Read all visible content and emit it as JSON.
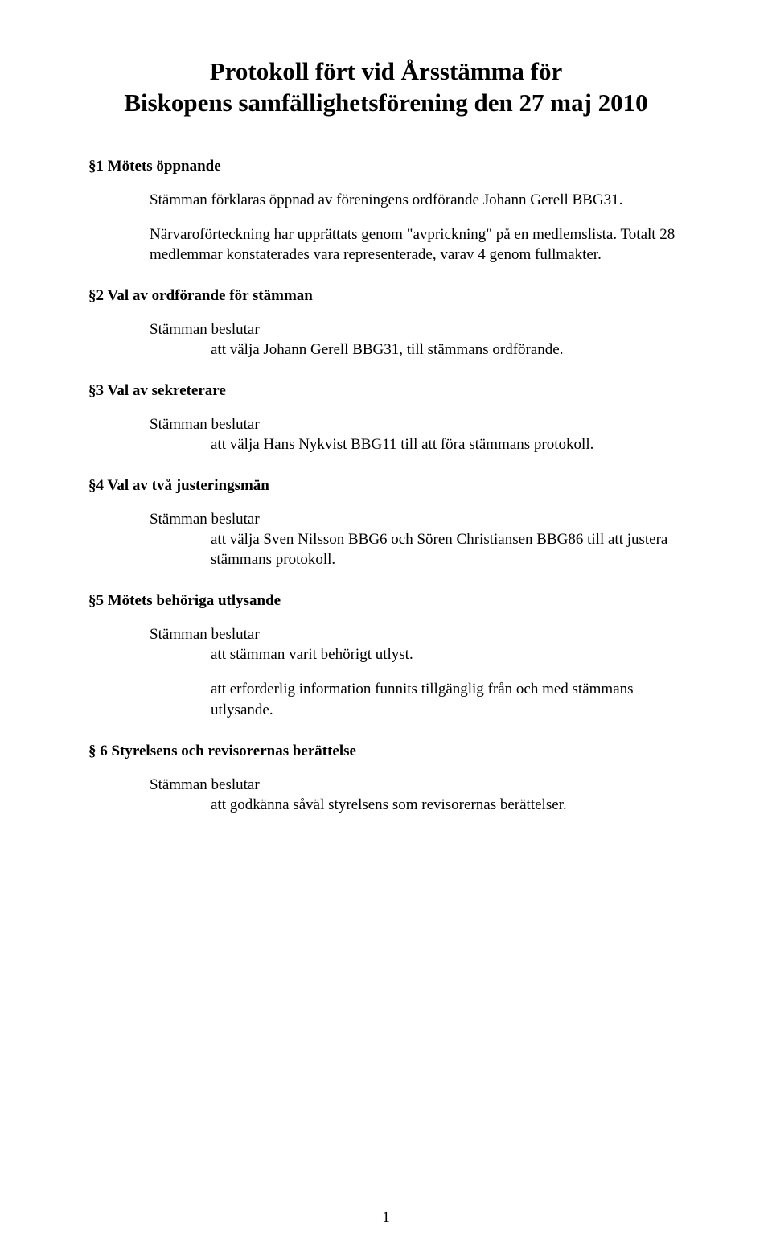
{
  "title_line1": "Protokoll fört vid Årsstämma för",
  "title_line2": "Biskopens samfällighetsförening den 27 maj 2010",
  "sections": {
    "s1": {
      "heading": "§1 Mötets öppnande",
      "p1": "Stämman förklaras öppnad av föreningens ordförande Johann Gerell BBG31.",
      "p2": "Närvaroförteckning har upprättats genom \"avprickning\" på en medlemslista. Totalt 28 medlemmar konstaterades vara representerade, varav 4 genom fullmakter."
    },
    "s2": {
      "heading": "§2 Val av ordförande för stämman",
      "lead": "Stämman beslutar",
      "item": "att välja Johann Gerell BBG31, till stämmans ordförande."
    },
    "s3": {
      "heading": "§3 Val av sekreterare",
      "lead": "Stämman beslutar",
      "item": "att välja Hans Nykvist BBG11 till att föra stämmans protokoll."
    },
    "s4": {
      "heading": "§4 Val av två justeringsmän",
      "lead": "Stämman beslutar",
      "item": "att välja Sven Nilsson BBG6 och Sören Christiansen BBG86 till att justera stämmans protokoll."
    },
    "s5": {
      "heading": "§5 Mötets behöriga utlysande",
      "lead": "Stämman beslutar",
      "item": "att stämman varit behörigt utlyst.",
      "item2": "att erforderlig information funnits tillgänglig från och med stämmans utlysande."
    },
    "s6": {
      "heading": "§ 6 Styrelsens och revisorernas berättelse",
      "lead": "Stämman beslutar",
      "item": "att godkänna såväl styrelsens som revisorernas berättelser."
    }
  },
  "page_number": "1"
}
